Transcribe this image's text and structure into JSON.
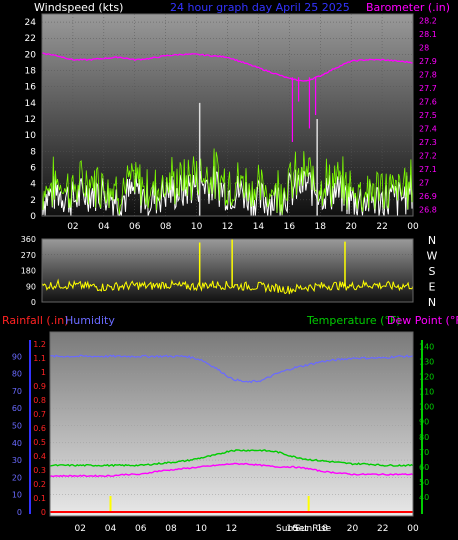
{
  "header": {
    "wind_label": "Windspeed (kts)",
    "graph_title": "24 hour graph day   April 25 2025",
    "baro_label": "Barometer (.in)"
  },
  "lower_header": {
    "rain_label": "Rainfall (.in)",
    "humidity_label": "Humidity",
    "temp_label": "Temperature (°F)",
    "dew_label": "Dew Point (°F)"
  },
  "markers": {
    "sunset": "SunSet",
    "sunrise": "SunRise"
  },
  "colors": {
    "wind": "#ffffff",
    "gust": "#7CFC00",
    "baro": "#ff00ff",
    "winddir": "#ffff00",
    "humidity": "#6a6aff",
    "temp": "#00cc00",
    "dew": "#ff00ff",
    "rain": "#ff0000",
    "marker": "#ffff00"
  },
  "chart_data": [
    {
      "type": "line",
      "id": "wind-baro",
      "x_ticks": [
        "02",
        "04",
        "06",
        "08",
        "10",
        "12",
        "14",
        "16",
        "18",
        "20",
        "22",
        "00"
      ],
      "y_left_ticks": [
        "0",
        "2",
        "4",
        "6",
        "8",
        "10",
        "12",
        "14",
        "16",
        "18",
        "20",
        "22",
        "24"
      ],
      "y_right_ticks": [
        "26.8",
        "26.9",
        "27",
        "27.1",
        "27.2",
        "27.3",
        "27.4",
        "27.5",
        "27.6",
        "27.7",
        "27.8",
        "27.9",
        "28",
        "28.1",
        "28.2"
      ],
      "ylim_left": [
        0,
        25
      ],
      "ylim_right": [
        26.75,
        28.25
      ],
      "series": [
        {
          "name": "Windspeed (kts)",
          "axis": "left",
          "x": [
            0,
            1,
            2,
            3,
            4,
            5,
            6,
            7,
            8,
            9,
            10,
            11,
            12,
            13,
            14,
            15,
            16,
            17,
            18,
            19,
            20,
            21,
            22,
            23,
            24
          ],
          "values": [
            2,
            3,
            2,
            3,
            3,
            2,
            3,
            2,
            3,
            3,
            4,
            4,
            3,
            3,
            2,
            2,
            3,
            4,
            3,
            3,
            2,
            2,
            2,
            2,
            3
          ]
        },
        {
          "name": "Barometer (.in)",
          "axis": "right",
          "x": [
            0,
            1,
            2,
            3,
            4,
            5,
            6,
            7,
            8,
            9,
            10,
            11,
            12,
            13,
            14,
            15,
            16,
            17,
            18,
            19,
            20,
            21,
            22,
            23,
            24
          ],
          "values": [
            27.96,
            27.94,
            27.91,
            27.91,
            27.92,
            27.93,
            27.91,
            27.92,
            27.94,
            27.95,
            27.95,
            27.94,
            27.93,
            27.89,
            27.85,
            27.81,
            27.77,
            27.75,
            27.79,
            27.85,
            27.9,
            27.91,
            27.91,
            27.9,
            27.89
          ]
        }
      ]
    },
    {
      "type": "line",
      "id": "wind-direction",
      "y_left_ticks": [
        "0",
        "90",
        "180",
        "270",
        "360"
      ],
      "y_right_ticks": [
        "N",
        "W",
        "S",
        "E",
        "N"
      ],
      "ylim": [
        0,
        360
      ],
      "series": [
        {
          "name": "Wind direction",
          "x": [
            0,
            1,
            2,
            3,
            4,
            5,
            6,
            7,
            8,
            9,
            10,
            11,
            12,
            13,
            14,
            15,
            16,
            17,
            18,
            19,
            20,
            21,
            22,
            23,
            24
          ],
          "values": [
            90,
            100,
            95,
            90,
            85,
            90,
            95,
            90,
            100,
            90,
            90,
            100,
            95,
            90,
            90,
            80,
            70,
            85,
            90,
            95,
            90,
            100,
            95,
            90,
            95
          ]
        }
      ]
    },
    {
      "type": "line",
      "id": "temp-hum-rain",
      "x_ticks": [
        "02",
        "04",
        "06",
        "08",
        "10",
        "12",
        "14",
        "16",
        "18",
        "20",
        "22",
        "00"
      ],
      "y_rain_ticks": [
        "0",
        "0.1",
        "0.2",
        "0.3",
        "0.4",
        "0.5",
        "0.6",
        "0.7",
        "0.8",
        "0.9",
        "1",
        "1.1",
        "1.2"
      ],
      "y_humidity_ticks": [
        "0",
        "10",
        "20",
        "30",
        "40",
        "50",
        "60",
        "70",
        "80",
        "90"
      ],
      "y_temp_ticks": [
        "40",
        "50",
        "60",
        "70",
        "80",
        "90",
        "100",
        "110",
        "120",
        "130",
        "140"
      ],
      "ylim_humidity": [
        0,
        100
      ],
      "ylim_temp": [
        30,
        145
      ],
      "series": [
        {
          "name": "Humidity",
          "axis": "humidity",
          "x": [
            0,
            1,
            2,
            3,
            4,
            5,
            6,
            7,
            8,
            9,
            10,
            11,
            12,
            13,
            14,
            15,
            16,
            17,
            18,
            19,
            20,
            21,
            22,
            23,
            24
          ],
          "values": [
            90,
            90,
            90,
            90,
            90,
            90,
            90,
            90,
            90,
            90,
            88,
            83,
            77,
            75,
            76,
            80,
            83,
            85,
            87,
            88,
            89,
            89,
            89,
            90,
            90
          ]
        },
        {
          "name": "Temperature (°F)",
          "axis": "temp",
          "x": [
            0,
            1,
            2,
            3,
            4,
            5,
            6,
            7,
            8,
            9,
            10,
            11,
            12,
            13,
            14,
            15,
            16,
            17,
            18,
            19,
            20,
            21,
            22,
            23,
            24
          ],
          "values": [
            61,
            61,
            61,
            61,
            61,
            61,
            61,
            62,
            63,
            64,
            66,
            68,
            71,
            71,
            71,
            70,
            67,
            65,
            64,
            63,
            62,
            62,
            61,
            61,
            61
          ]
        },
        {
          "name": "Dew Point (°F)",
          "axis": "temp",
          "x": [
            0,
            1,
            2,
            3,
            4,
            5,
            6,
            7,
            8,
            9,
            10,
            11,
            12,
            13,
            14,
            15,
            16,
            17,
            18,
            19,
            20,
            21,
            22,
            23,
            24
          ],
          "values": [
            54,
            54,
            54,
            54,
            54,
            55,
            55,
            57,
            58,
            59,
            60,
            61,
            62,
            62,
            61,
            60,
            60,
            59,
            57,
            56,
            55,
            55,
            55,
            55,
            55
          ]
        },
        {
          "name": "Rainfall (.in)",
          "axis": "rain",
          "x": [
            0,
            24
          ],
          "values": [
            0,
            0
          ]
        }
      ]
    }
  ]
}
